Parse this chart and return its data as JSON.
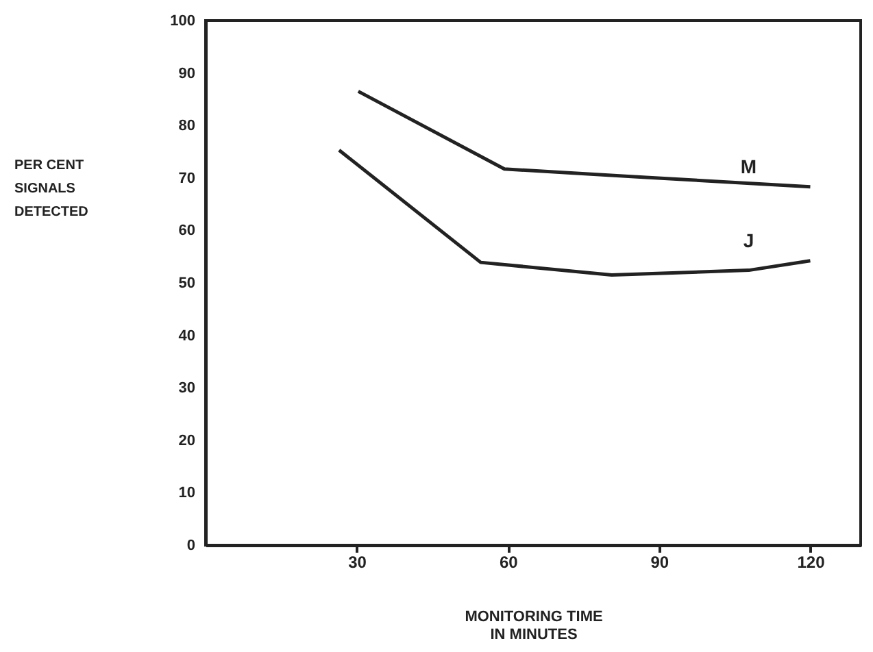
{
  "chart_data": {
    "type": "line",
    "xlabel": [
      "MONITORING TIME",
      "IN MINUTES"
    ],
    "ylabel": [
      "PER CENT",
      "SIGNALS",
      "DETECTED"
    ],
    "xlim": [
      0,
      130
    ],
    "xticks": [
      30,
      60,
      90,
      120
    ],
    "ylim": [
      0,
      100
    ],
    "yticks": [
      0,
      10,
      20,
      30,
      40,
      50,
      60,
      70,
      80,
      90,
      100
    ],
    "grid": false,
    "marker": "none",
    "line_style": "solid",
    "series": [
      {
        "name": "M",
        "color": "#222222",
        "x": [
          30.3,
          59.3,
          87.4,
          120
        ],
        "values": [
          86.5,
          71.7,
          70.1,
          68.3
        ]
      },
      {
        "name": "J",
        "color": "#222222",
        "x": [
          26.5,
          54.6,
          80.6,
          107.8,
          120
        ],
        "values": [
          75.3,
          53.9,
          51.5,
          52.4,
          54.2
        ]
      }
    ]
  }
}
